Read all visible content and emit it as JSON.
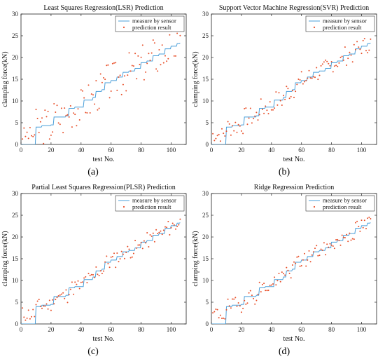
{
  "colors": {
    "measure": "#4a9fd9",
    "prediction": "#e8502a"
  },
  "chart_data": [
    {
      "type": "line+scatter",
      "panel_label": "(a)",
      "title": "Least Squares Regression(LSR) Prediction",
      "xlabel": "test No.",
      "ylabel": "clamping force(kN)",
      "xlim": [
        0,
        110
      ],
      "ylim": [
        0,
        30
      ],
      "xticks": [
        0,
        20,
        40,
        60,
        80,
        100
      ],
      "yticks": [
        0,
        5,
        10,
        15,
        20,
        25,
        30
      ],
      "legend": [
        "measure by sensor",
        "prediction result"
      ],
      "noise": 4.5,
      "seed": 3,
      "series": [
        {
          "name": "measure by sensor",
          "kind": "line"
        },
        {
          "name": "prediction result",
          "kind": "scatter"
        }
      ]
    },
    {
      "type": "line+scatter",
      "panel_label": "(b)",
      "title": "Support Vector Machine Regression(SVR) Prediction",
      "xlabel": "test No.",
      "ylabel": "clamping force(kN)",
      "xlim": [
        0,
        110
      ],
      "ylim": [
        0,
        30
      ],
      "xticks": [
        0,
        20,
        40,
        60,
        80,
        100
      ],
      "yticks": [
        0,
        5,
        10,
        15,
        20,
        25,
        30
      ],
      "legend": [
        "measure by sensor",
        "prediction result"
      ],
      "noise": 2.2,
      "seed": 7,
      "series": [
        {
          "name": "measure by sensor",
          "kind": "line"
        },
        {
          "name": "prediction result",
          "kind": "scatter"
        }
      ]
    },
    {
      "type": "line+scatter",
      "panel_label": "(c)",
      "title": "Partial Least Squares Regression(PLSR) Prediction",
      "xlabel": "test No.",
      "ylabel": "clamping force(kN)",
      "xlim": [
        0,
        110
      ],
      "ylim": [
        0,
        30
      ],
      "xticks": [
        0,
        20,
        40,
        60,
        80,
        100
      ],
      "yticks": [
        0,
        5,
        10,
        15,
        20,
        25,
        30
      ],
      "legend": [
        "measure by sensor",
        "prediction result"
      ],
      "noise": 1.8,
      "seed": 11,
      "series": [
        {
          "name": "measure by sensor",
          "kind": "line"
        },
        {
          "name": "prediction result",
          "kind": "scatter"
        }
      ]
    },
    {
      "type": "line+scatter",
      "panel_label": "(d)",
      "title": "Ridge Regression Prediction",
      "xlabel": "test No.",
      "ylabel": "clamping force(kN)",
      "xlim": [
        0,
        110
      ],
      "ylim": [
        0,
        30
      ],
      "xticks": [
        0,
        20,
        40,
        60,
        80,
        100
      ],
      "yticks": [
        0,
        5,
        10,
        15,
        20,
        25,
        30
      ],
      "legend": [
        "measure by sensor",
        "prediction result"
      ],
      "noise": 1.8,
      "seed": 19,
      "series": [
        {
          "name": "measure by sensor",
          "kind": "line"
        },
        {
          "name": "prediction result",
          "kind": "scatter"
        }
      ]
    }
  ]
}
